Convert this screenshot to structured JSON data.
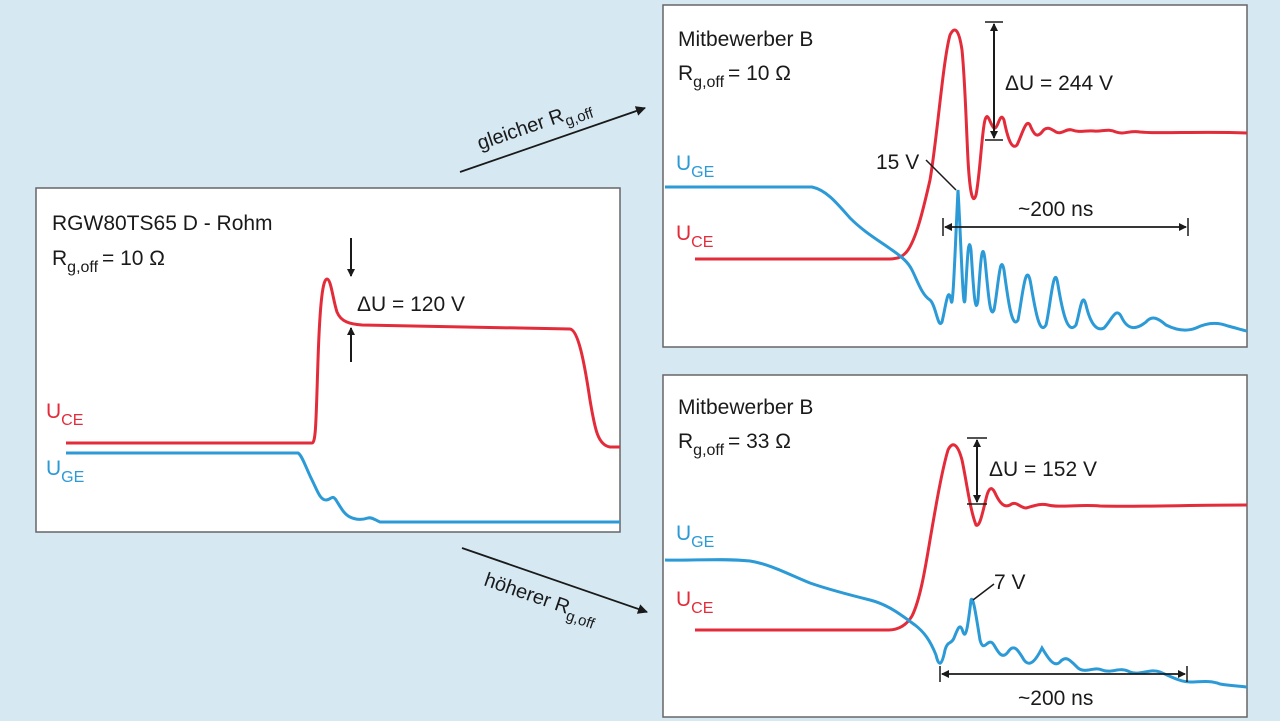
{
  "panels": [
    {
      "title": "RGW80TS65 D - Rohm",
      "rg_main": "R",
      "rg_sub": "g,off",
      "rg_value": "= 10 Ω",
      "delta_u": "ΔU = 120 V",
      "uce_main": "U",
      "uce_sub": "CE",
      "uge_main": "U",
      "uge_sub": "GE"
    },
    {
      "title": "Mitbewerber B",
      "rg_main": "R",
      "rg_sub": "g,off",
      "rg_value": "= 10 Ω",
      "delta_u": "ΔU = 244 V",
      "peak_label": "15 V",
      "duration": "~200 ns",
      "uce_main": "U",
      "uce_sub": "CE",
      "uge_main": "U",
      "uge_sub": "GE"
    },
    {
      "title": "Mitbewerber B",
      "rg_main": "R",
      "rg_sub": "g,off",
      "rg_value": "= 33 Ω",
      "delta_u": "ΔU = 152 V",
      "peak_label": "7 V",
      "duration": "~200 ns",
      "uce_main": "U",
      "uce_sub": "CE",
      "uge_main": "U",
      "uge_sub": "GE"
    }
  ],
  "arrows": {
    "top": {
      "main": "gleicher R",
      "sub": "g,off"
    },
    "bottom": {
      "main": "höherer R",
      "sub": "g,off"
    }
  },
  "colors": {
    "uce": "#e32b3a",
    "uge": "#2b9ad6",
    "background": "#d6e9f3",
    "panel": "#ffffff"
  }
}
